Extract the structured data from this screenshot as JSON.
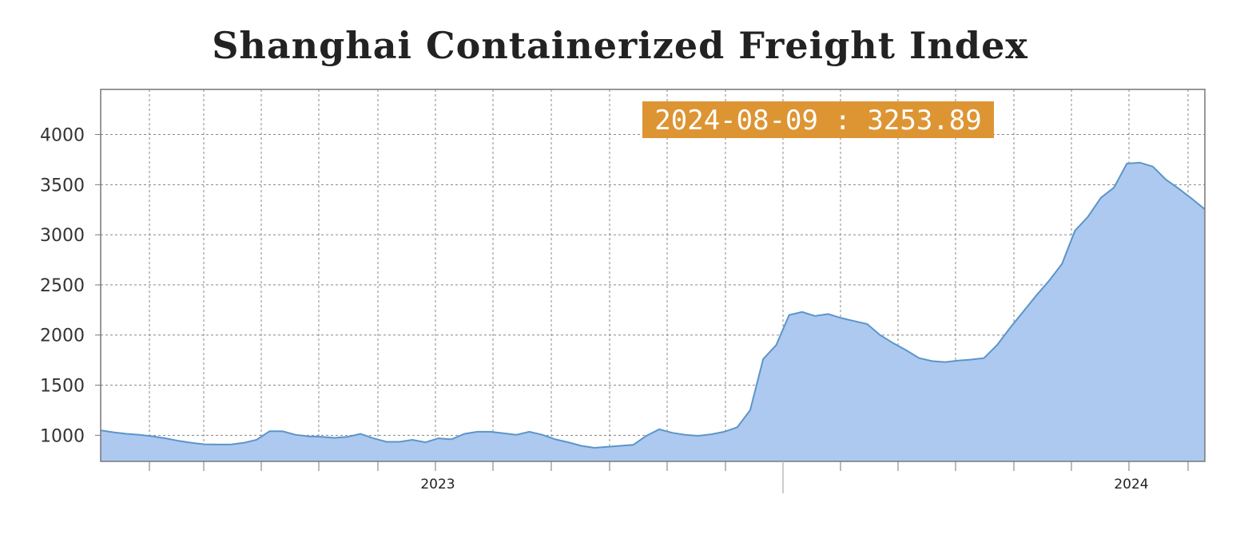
{
  "chart_data": {
    "type": "area",
    "title": "Shanghai Containerized Freight Index",
    "xlabel": "",
    "ylabel": "",
    "x_tick_labels": [
      "2023",
      "2024"
    ],
    "y_ticks": [
      1000,
      1500,
      2000,
      2500,
      3000,
      3500,
      4000
    ],
    "ylim": [
      740,
      4450
    ],
    "grid": true,
    "legend": "none",
    "tooltip": "2024-08-09 : 3253.89",
    "series": [
      {
        "values": [
          1050,
          1030,
          1015,
          1005,
          990,
          970,
          945,
          925,
          910,
          908,
          908,
          925,
          955,
          1040,
          1040,
          1005,
          990,
          985,
          975,
          985,
          1015,
          970,
          935,
          935,
          955,
          930,
          970,
          960,
          1015,
          1035,
          1035,
          1020,
          1005,
          1035,
          1005,
          960,
          930,
          895,
          875,
          885,
          895,
          905,
          995,
          1060,
          1025,
          1005,
          995,
          1010,
          1035,
          1080,
          1250,
          1760,
          1900,
          2200,
          2230,
          2190,
          2210,
          2170,
          2140,
          2110,
          2000,
          1920,
          1850,
          1770,
          1740,
          1730,
          1745,
          1755,
          1770,
          1900,
          2070,
          2230,
          2390,
          2540,
          2710,
          3040,
          3180,
          3370,
          3470,
          3710,
          3720,
          3680,
          3550,
          3460,
          3360,
          3253.89
        ]
      }
    ],
    "colors": {
      "fill": "#adc9f0",
      "line": "#5b95c9",
      "grid": "#888888",
      "axis": "#777777",
      "tooltip_bg": "#dd9533"
    }
  }
}
